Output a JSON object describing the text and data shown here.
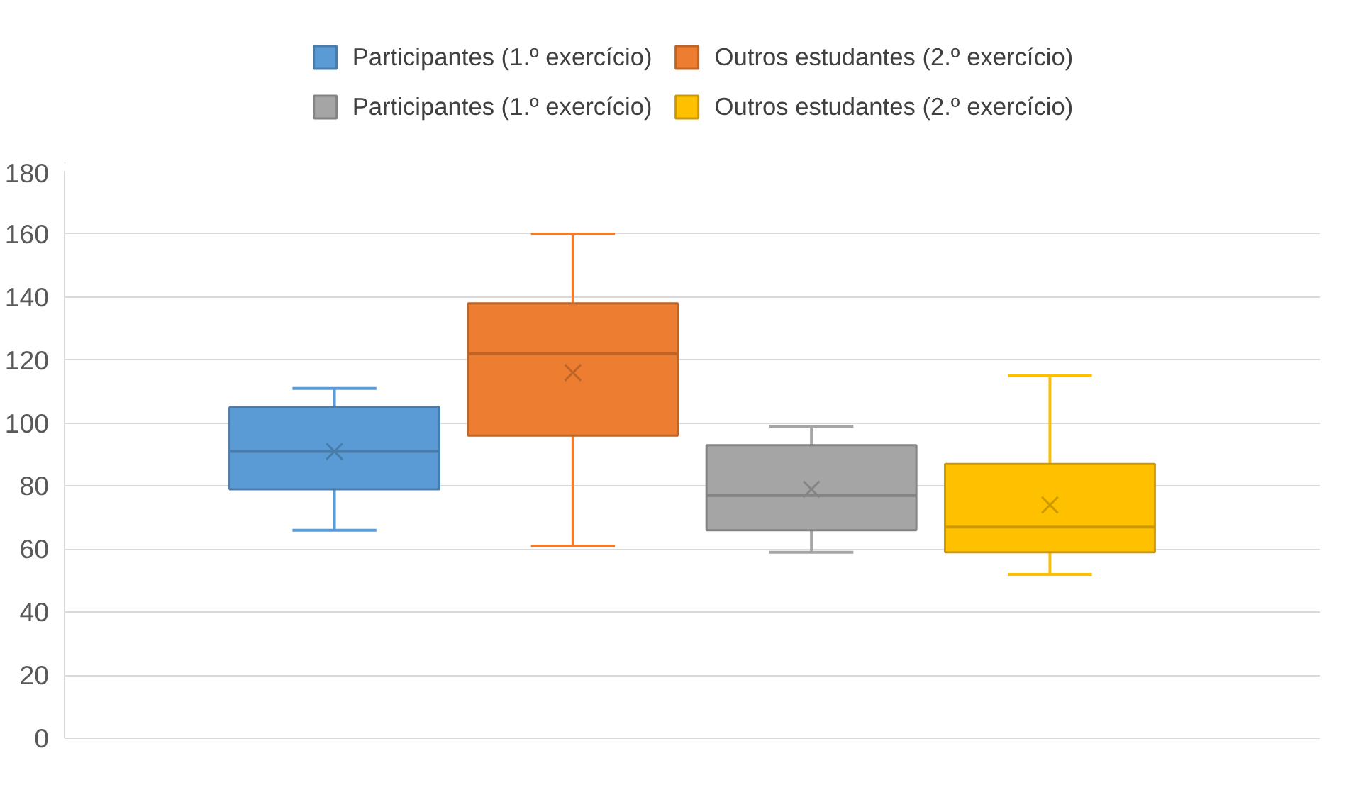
{
  "chart_data": {
    "type": "box",
    "categories": [
      null
    ],
    "series": [
      {
        "name": "Participantes (1.º exercício)",
        "color": "#5b9bd5",
        "boxes": [
          {
            "low": 66,
            "q1": 79,
            "median": 91,
            "q3": 105,
            "high": 111,
            "mean": 91
          }
        ]
      },
      {
        "name": "Outros estudantes (2.º exercício)",
        "color": "#ed7d31",
        "boxes": [
          {
            "low": 61,
            "q1": 96,
            "median": 122,
            "q3": 138,
            "high": 160,
            "mean": 116
          }
        ]
      },
      {
        "name": "Participantes (1.º exercício)",
        "color": "#a5a5a5",
        "boxes": [
          {
            "low": 59,
            "q1": 66,
            "median": 77,
            "q3": 93,
            "high": 99,
            "mean": 79
          }
        ]
      },
      {
        "name": "Outros estudantes (2.º exercício)",
        "color": "#ffc000",
        "boxes": [
          {
            "low": 52,
            "q1": 59,
            "median": 67,
            "q3": 87,
            "high": 115,
            "mean": 74
          }
        ]
      }
    ],
    "ylim": [
      0,
      180
    ],
    "yticks": [
      0,
      20,
      40,
      60,
      80,
      100,
      120,
      140,
      160,
      180
    ],
    "grid": "y",
    "legend": "top"
  }
}
